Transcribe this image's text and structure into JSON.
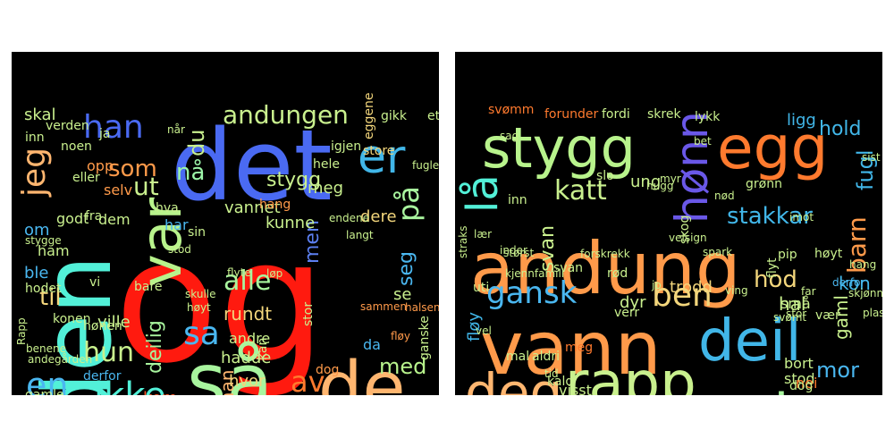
{
  "clouds": [
    {
      "words": [
        {
          "text": "og",
          "color": "#ff1a0f"
        },
        {
          "text": "det",
          "color": "#4a6af2"
        },
        {
          "text": "den",
          "color": "#52f0d8"
        },
        {
          "text": "så",
          "color": "#a8f59e"
        },
        {
          "text": "de",
          "color": "#ffb670"
        },
        {
          "text": "var",
          "color": "#b8f38c"
        },
        {
          "text": "er",
          "color": "#41b6e8"
        },
        {
          "text": "ikke",
          "color": "#52f0d8"
        },
        {
          "text": "han",
          "color": "#4a6af2"
        },
        {
          "text": "jeg",
          "color": "#ffb670"
        },
        {
          "text": "en",
          "color": "#4ab7f0"
        },
        {
          "text": "av",
          "color": "#ff7a2e"
        },
        {
          "text": "sa",
          "color": "#4ab7f0"
        },
        {
          "text": "hun",
          "color": "#c9f08e"
        },
        {
          "text": "andungen",
          "color": "#c9f08e"
        },
        {
          "text": "på",
          "color": "#a8f59e"
        },
        {
          "text": "seg",
          "color": "#4ab7f0"
        },
        {
          "text": "til",
          "color": "#f3d67c"
        },
        {
          "text": "alle",
          "color": "#a8f59e"
        },
        {
          "text": "som",
          "color": "#ff9a4a"
        },
        {
          "text": "ut",
          "color": "#c9f08e"
        },
        {
          "text": "nå",
          "color": "#9cf5a8"
        },
        {
          "text": "du",
          "color": "#c9f08e"
        },
        {
          "text": "med",
          "color": "#b8f38c"
        },
        {
          "text": "men",
          "color": "#5c7ff0"
        },
        {
          "text": "vil",
          "color": "#ff7a2e"
        },
        {
          "text": "man",
          "color": "#ffb670"
        },
        {
          "text": "stygg",
          "color": "#c9f08e"
        },
        {
          "text": "vannet",
          "color": "#c9f08e"
        },
        {
          "text": "kunne",
          "color": "#c9f08e"
        },
        {
          "text": "dere",
          "color": "#f3d67c"
        },
        {
          "text": "meg",
          "color": "#c9f08e"
        },
        {
          "text": "hadde",
          "color": "#c9f08e"
        },
        {
          "text": "hvor",
          "color": "#f3d67c"
        },
        {
          "text": "kom",
          "color": "#ff5a2a"
        },
        {
          "text": "deilig",
          "color": "#a8f59e"
        },
        {
          "text": "rundt",
          "color": "#f3d67c"
        },
        {
          "text": "andre",
          "color": "#c9f08e"
        },
        {
          "text": "ville",
          "color": "#c9f08e"
        },
        {
          "text": "dem",
          "color": "#c9f08e"
        },
        {
          "text": "godt",
          "color": "#c9f08e"
        },
        {
          "text": "har",
          "color": "#4ab7f0"
        },
        {
          "text": "ble",
          "color": "#4ab7f0"
        },
        {
          "text": "skal",
          "color": "#c9f08e"
        },
        {
          "text": "gikk",
          "color": "#c9f08e"
        },
        {
          "text": "et",
          "color": "#c9f08e"
        },
        {
          "text": "eggene",
          "color": "#f3d67c"
        },
        {
          "text": "om",
          "color": "#4ab7f0"
        },
        {
          "text": "opp",
          "color": "#ff9a4a"
        },
        {
          "text": "selv",
          "color": "#ff9a4a"
        },
        {
          "text": "hva",
          "color": "#c9f08e"
        },
        {
          "text": "sin",
          "color": "#c9f08e"
        },
        {
          "text": "igjen",
          "color": "#c9f08e"
        },
        {
          "text": "se",
          "color": "#c9f08e"
        },
        {
          "text": "da",
          "color": "#4ab7f0"
        },
        {
          "text": "stakkars",
          "color": "#ff9a4a"
        },
        {
          "text": "måtte",
          "color": "#f3d67c"
        },
        {
          "text": "katten",
          "color": "#f3d67c"
        },
        {
          "text": "stor",
          "color": "#c9f08e"
        },
        {
          "text": "ganske",
          "color": "#c9f08e"
        },
        {
          "text": "hele",
          "color": "#c9f08e"
        },
        {
          "text": "kan",
          "color": "#c9f08e"
        },
        {
          "text": "anden",
          "color": "#c9f08e"
        },
        {
          "text": "være",
          "color": "#c9f08e"
        },
        {
          "text": "gode",
          "color": "#c9f08e"
        },
        {
          "text": "ned",
          "color": "#c9f08e"
        },
        {
          "text": "aldri",
          "color": "#c9f08e"
        },
        {
          "text": "fra",
          "color": "#c9f08e"
        },
        {
          "text": "gamle",
          "color": "#c9f08e"
        },
        {
          "text": "hodet",
          "color": "#c9f08e"
        },
        {
          "text": "konen",
          "color": "#c9f08e"
        },
        {
          "text": "hønen",
          "color": "#c9f08e"
        },
        {
          "text": "bare",
          "color": "#c9f08e"
        },
        {
          "text": "vi",
          "color": "#c9f08e"
        },
        {
          "text": "ham",
          "color": "#c9f08e"
        },
        {
          "text": "noen",
          "color": "#c9f08e"
        },
        {
          "text": "eller",
          "color": "#c9f08e"
        },
        {
          "text": "ja",
          "color": "#c9f08e"
        },
        {
          "text": "verden",
          "color": "#c9f08e"
        },
        {
          "text": "inn",
          "color": "#c9f08e"
        },
        {
          "text": "stygge",
          "color": "#c9f08e"
        },
        {
          "text": "dog",
          "color": "#ff9a4a"
        },
        {
          "text": "derfor",
          "color": "#4ab7f0"
        },
        {
          "text": "fløy",
          "color": "#ff9a4a"
        },
        {
          "text": "halsen",
          "color": "#ff9a4a"
        },
        {
          "text": "sammen",
          "color": "#ff9a4a"
        },
        {
          "text": "endene",
          "color": "#c9f08e"
        },
        {
          "text": "langt",
          "color": "#c9f08e"
        },
        {
          "text": "stod",
          "color": "#c9f08e"
        },
        {
          "text": "løp",
          "color": "#c9f08e"
        },
        {
          "text": "hang",
          "color": "#ff9a4a"
        },
        {
          "text": "store",
          "color": "#f3d67c"
        },
        {
          "text": "når",
          "color": "#c9f08e"
        },
        {
          "text": "fuglene",
          "color": "#c9f08e"
        },
        {
          "text": "flyte",
          "color": "#c9f08e"
        },
        {
          "text": "høyt",
          "color": "#c9f08e"
        },
        {
          "text": "skulle",
          "color": "#c9f08e"
        },
        {
          "text": "andegården",
          "color": "#c9f08e"
        },
        {
          "text": "benene",
          "color": "#c9f08e"
        },
        {
          "text": "etter",
          "color": "#c9f08e"
        },
        {
          "text": "sånn",
          "color": "#c9f08e"
        },
        {
          "text": "Rapp",
          "color": "#c9f08e"
        }
      ]
    },
    {
      "words": [
        {
          "text": "andung",
          "color": "#ff9a4a"
        },
        {
          "text": "vann",
          "color": "#ff9a4a"
        },
        {
          "text": "deil",
          "color": "#41b6e8"
        },
        {
          "text": "stygg",
          "color": "#b8f38c"
        },
        {
          "text": "egg",
          "color": "#ff7a2e"
        },
        {
          "text": "rapp",
          "color": "#c9f08e"
        },
        {
          "text": "deg",
          "color": "#ffb670"
        },
        {
          "text": "der",
          "color": "#a8f59e"
        },
        {
          "text": "hønn",
          "color": "#6a58e8"
        },
        {
          "text": "lå",
          "color": "#52f0d8"
        },
        {
          "text": "gansk",
          "color": "#4ab7f0"
        },
        {
          "text": "ben",
          "color": "#f3d67c"
        },
        {
          "text": "katt",
          "color": "#c9f08e"
        },
        {
          "text": "stakkar",
          "color": "#41b6e8"
        },
        {
          "text": "mor",
          "color": "#4ab7f0"
        },
        {
          "text": "end",
          "color": "#c9f08e"
        },
        {
          "text": "leng",
          "color": "#41b6e8"
        },
        {
          "text": "hold",
          "color": "#41b6e8"
        },
        {
          "text": "barn",
          "color": "#ff9a4a"
        },
        {
          "text": "fugl",
          "color": "#41b6e8"
        },
        {
          "text": "kon",
          "color": "#41b6e8"
        },
        {
          "text": "hod",
          "color": "#f3d67c"
        },
        {
          "text": "svan",
          "color": "#c9f08e"
        },
        {
          "text": "gaml",
          "color": "#c9f08e"
        },
        {
          "text": "hal",
          "color": "#c9f08e"
        },
        {
          "text": "tenkt",
          "color": "#ff7a2e"
        },
        {
          "text": "alltid",
          "color": "#4ab7f0"
        },
        {
          "text": "verd",
          "color": "#ff7a2e"
        },
        {
          "text": "visst",
          "color": "#c9f08e"
        },
        {
          "text": "kald",
          "color": "#c9f08e"
        },
        {
          "text": "ligg",
          "color": "#41b6e8"
        },
        {
          "text": "trodd",
          "color": "#f3d67c"
        },
        {
          "text": "dyr",
          "color": "#c9f08e"
        },
        {
          "text": "bort",
          "color": "#c9f08e"
        },
        {
          "text": "stod",
          "color": "#c9f08e"
        },
        {
          "text": "nei",
          "color": "#ff7a2e"
        },
        {
          "text": "ung",
          "color": "#c9f08e"
        },
        {
          "text": "dog",
          "color": "#c9f08e"
        },
        {
          "text": "fløy",
          "color": "#41b6e8"
        },
        {
          "text": "små",
          "color": "#c9f08e"
        },
        {
          "text": "verr",
          "color": "#c9f08e"
        },
        {
          "text": "aldri",
          "color": "#c9f08e"
        },
        {
          "text": "grønn",
          "color": "#c9f08e"
        },
        {
          "text": "skog",
          "color": "#c9f08e"
        },
        {
          "text": "svan",
          "color": "#c9f08e"
        },
        {
          "text": "pip",
          "color": "#c9f08e"
        },
        {
          "text": "mal",
          "color": "#c9f08e"
        },
        {
          "text": "sånn",
          "color": "#c9f08e"
        },
        {
          "text": "kanal",
          "color": "#c9f08e"
        },
        {
          "text": "lykk",
          "color": "#c9f08e"
        },
        {
          "text": "slo",
          "color": "#c9f08e"
        },
        {
          "text": "forunder",
          "color": "#ff7a2e"
        },
        {
          "text": "fordi",
          "color": "#c9f08e"
        },
        {
          "text": "skrek",
          "color": "#c9f08e"
        },
        {
          "text": "svømm",
          "color": "#ff7a2e"
        },
        {
          "text": "høyt",
          "color": "#c9f08e"
        },
        {
          "text": "vær",
          "color": "#c9f08e"
        },
        {
          "text": "meg",
          "color": "#ff7a2e"
        },
        {
          "text": "rød",
          "color": "#c9f08e"
        },
        {
          "text": "inn",
          "color": "#c9f08e"
        },
        {
          "text": "uti",
          "color": "#c9f08e"
        },
        {
          "text": "flyt",
          "color": "#c9f08e"
        },
        {
          "text": "løp",
          "color": "#c9f08e"
        },
        {
          "text": "stakk",
          "color": "#c9f08e"
        },
        {
          "text": "bruk",
          "color": "#c9f08e"
        },
        {
          "text": "flot",
          "color": "#c9f08e"
        },
        {
          "text": "snart",
          "color": "#c9f08e"
        },
        {
          "text": "sag",
          "color": "#c9f08e"
        },
        {
          "text": "stor",
          "color": "#c9f08e"
        },
        {
          "text": "far",
          "color": "#c9f08e"
        },
        {
          "text": "jo",
          "color": "#c9f08e"
        },
        {
          "text": "sist",
          "color": "#c9f08e"
        },
        {
          "text": "ving",
          "color": "#c9f08e"
        },
        {
          "text": "spark",
          "color": "#c9f08e"
        },
        {
          "text": "velsign",
          "color": "#c9f08e"
        },
        {
          "text": "imot",
          "color": "#c9f08e"
        },
        {
          "text": "derfor",
          "color": "#4ab7f0"
        },
        {
          "text": "nød",
          "color": "#c9f08e"
        },
        {
          "text": "myr",
          "color": "#c9f08e"
        },
        {
          "text": "hugg",
          "color": "#c9f08e"
        },
        {
          "text": "lær",
          "color": "#c9f08e"
        },
        {
          "text": "straks",
          "color": "#c9f08e"
        },
        {
          "text": "inder",
          "color": "#c9f08e"
        },
        {
          "text": "bet",
          "color": "#c9f08e"
        },
        {
          "text": "skjønn",
          "color": "#c9f08e"
        },
        {
          "text": "plask",
          "color": "#c9f08e"
        },
        {
          "text": "vel",
          "color": "#c9f08e"
        },
        {
          "text": "tid",
          "color": "#c9f08e"
        },
        {
          "text": "busk",
          "color": "#c9f08e"
        },
        {
          "text": "hang",
          "color": "#c9f08e"
        },
        {
          "text": "svømt",
          "color": "#c9f08e"
        },
        {
          "text": "størst",
          "color": "#c9f08e"
        },
        {
          "text": "forskrekk",
          "color": "#c9f08e"
        },
        {
          "text": "kjennfamili",
          "color": "#c9f08e"
        },
        {
          "text": "andegård",
          "color": "#c9f08e"
        }
      ]
    }
  ]
}
